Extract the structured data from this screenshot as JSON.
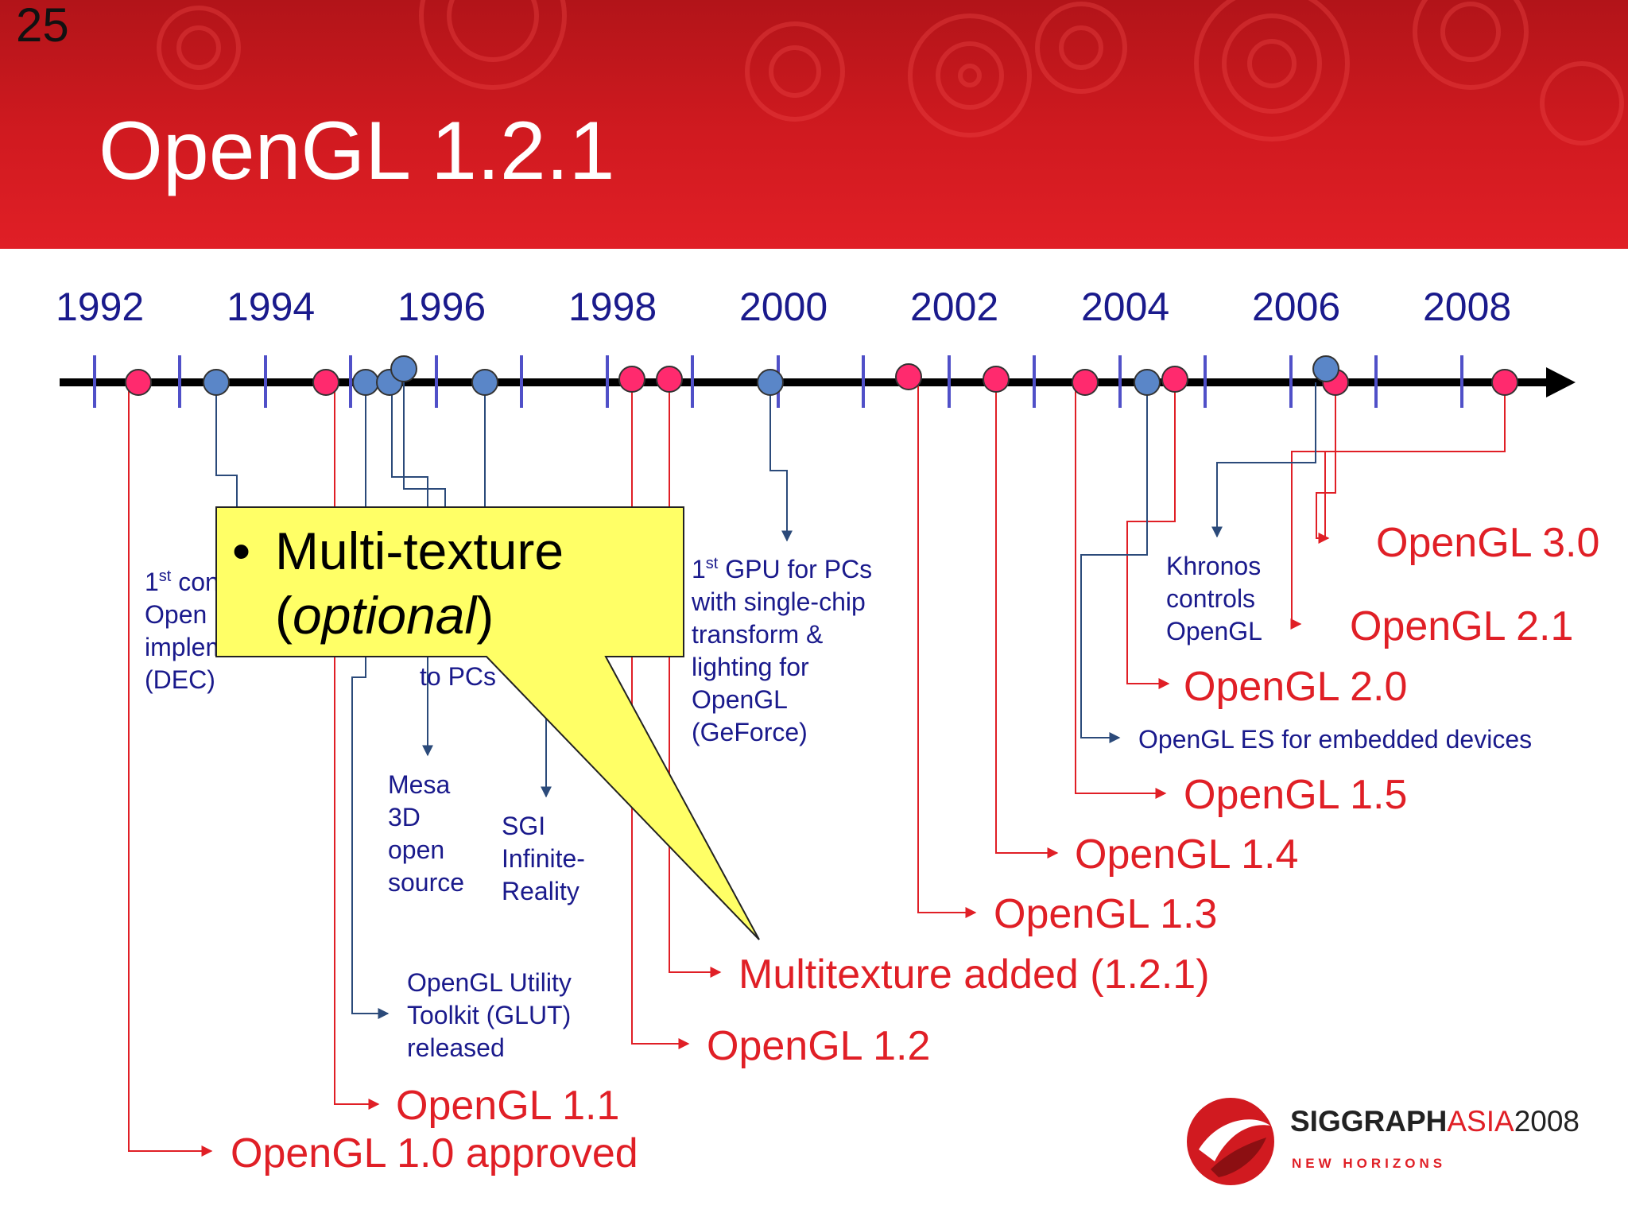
{
  "slide_number": "25",
  "title": "OpenGL 1.2.1",
  "years": [
    "1992",
    "1994",
    "1996",
    "1998",
    "2000",
    "2002",
    "2004",
    "2006",
    "2008"
  ],
  "labels": {
    "first_commercial_a": "1",
    "first_commercial_sup": "st",
    "first_commercial_b": " con",
    "first_commercial_line2": "Open",
    "first_commercial_line3": "implem",
    "first_commercial_line4": "(DEC)",
    "to_pcs": "to PCs",
    "mesa": [
      "Mesa",
      "3D",
      "open",
      "source"
    ],
    "sgi": [
      "SGI",
      "Infinite-",
      "Reality"
    ],
    "glut": [
      "OpenGL Utility",
      "Toolkit (GLUT)",
      "released"
    ],
    "gpu_a": "1",
    "gpu_sup": "st",
    "gpu_b": " GPU for PCs",
    "gpu_lines": [
      "with single-chip",
      "transform &",
      "lighting for",
      "OpenGL",
      "(GeForce)"
    ],
    "khronos": [
      "Khronos",
      "controls",
      "OpenGL"
    ],
    "opengl_es": "OpenGL ES for embedded devices"
  },
  "versions": {
    "v30": "OpenGL 3.0",
    "v21": "OpenGL 2.1",
    "v20": "OpenGL 2.0",
    "v15": "OpenGL 1.5",
    "v14": "OpenGL 1.4",
    "v13": "OpenGL 1.3",
    "multitex": "Multitexture added (1.2.1)",
    "v12": "OpenGL 1.2",
    "v11": "OpenGL 1.1",
    "v10": "OpenGL 1.0 approved"
  },
  "callout": {
    "bullet": "•",
    "line1": "Multi-texture",
    "paren_open": "(",
    "italic": "optional",
    "paren_close": ")"
  },
  "logo": {
    "siggraph": "SIGGRAPH",
    "asia": "ASIA",
    "year": "2008",
    "tagline": "NEW HORIZONS"
  },
  "colors": {
    "header_red": "#d11a20",
    "version_red": "#e01f26",
    "label_blue": "#1a1a8c",
    "tick_blue": "#5050c8",
    "marker_pink": "#ff2a6e",
    "marker_blue": "#5a86c8",
    "callout_yellow": "#ffff66"
  },
  "icons": [
    "timeline-arrow-icon",
    "siggraph-asia-logo-icon"
  ]
}
